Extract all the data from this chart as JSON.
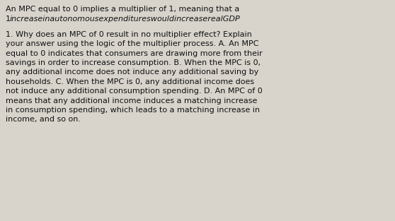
{
  "background_color": "#d8d4cc",
  "text_color": "#111111",
  "line1": "An MPC equal to 0 implies a multiplier of 1, meaning that a",
  "line2_normal": "1",
  "line2_italic": "increaseinautonomousexpenditureswouldincreaserealGDP",
  "body_text": "1. Why does an MPC of 0 result in no multiplier effect? Explain\nyour answer using the logic of the multiplier process. A. An MPC\nequal to 0 indicates that consumers are drawing more from their\nsavings in order to increase consumption. B. When the MPC is 0,\nany additional income does not induce any additional saving by\nhouseholds. C. When the MPC is 0, any additional income does\nnot induce any additional consumption spending. D. An MPC of 0\nmeans that any additional income induces a matching increase\nin consumption spending, which leads to a matching increase in\nincome, and so on.",
  "font_size": 8.0,
  "figwidth": 5.58,
  "figheight": 3.13,
  "dpi": 100
}
